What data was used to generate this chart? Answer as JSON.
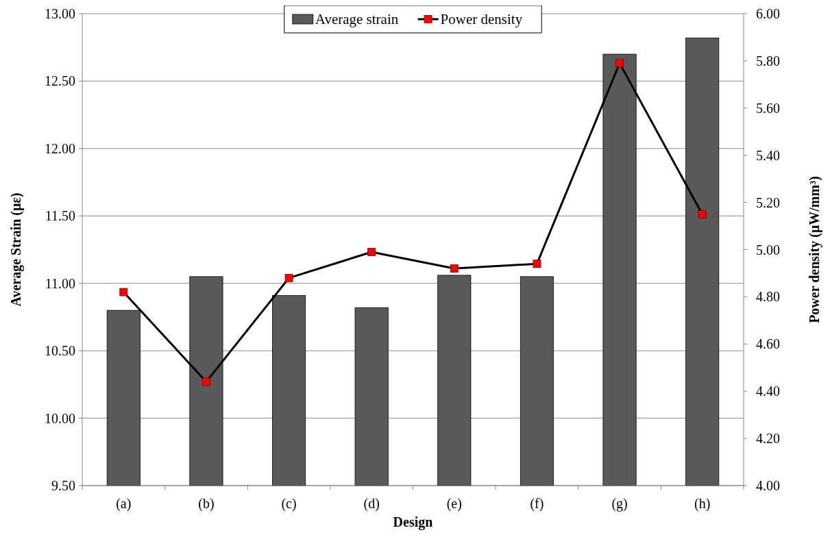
{
  "chart_data": {
    "type": "bar",
    "xlabel": "Design",
    "ylabel": "Average Strain (με)",
    "y2label": "Power density (μW/mm³)",
    "categories": [
      "(a)",
      "(b)",
      "(c)",
      "(d)",
      "(e)",
      "(f)",
      "(g)",
      "(h)"
    ],
    "series": [
      {
        "name": "Average strain",
        "color": "#595959",
        "values": [
          10.8,
          11.05,
          10.91,
          10.82,
          11.06,
          11.05,
          12.7,
          12.82
        ]
      },
      {
        "name": "Power density",
        "type": "line",
        "axis": "y2",
        "color": "#000000",
        "marker": "square",
        "values": [
          4.82,
          4.44,
          4.88,
          4.99,
          4.92,
          4.94,
          5.79,
          5.15
        ]
      }
    ],
    "ylim": [
      9.5,
      13
    ],
    "yticks": [
      {
        "value": 9.5,
        "label": "9.50"
      },
      {
        "value": 10,
        "label": "10.00"
      },
      {
        "value": 10.5,
        "label": "10.50"
      },
      {
        "value": 11,
        "label": "11.00"
      },
      {
        "value": 11.5,
        "label": "11.50"
      },
      {
        "value": 12,
        "label": "12.00"
      },
      {
        "value": 12.5,
        "label": "12.50"
      },
      {
        "value": 13,
        "label": "13.00"
      }
    ],
    "y2lim": [
      4,
      6
    ],
    "y2ticks": [
      {
        "value": 4,
        "label": "4.00"
      },
      {
        "value": 4.2,
        "label": "4.20"
      },
      {
        "value": 4.4,
        "label": "4.40"
      },
      {
        "value": 4.6,
        "label": "4.60"
      },
      {
        "value": 4.8,
        "label": "4.80"
      },
      {
        "value": 5,
        "label": "5.00"
      },
      {
        "value": 5.2,
        "label": "5.20"
      },
      {
        "value": 5.4,
        "label": "5.40"
      },
      {
        "value": 5.6,
        "label": "5.60"
      },
      {
        "value": 5.8,
        "label": "5.80"
      },
      {
        "value": 6,
        "label": "6.00"
      }
    ],
    "grid": "y",
    "legend": "top"
  }
}
